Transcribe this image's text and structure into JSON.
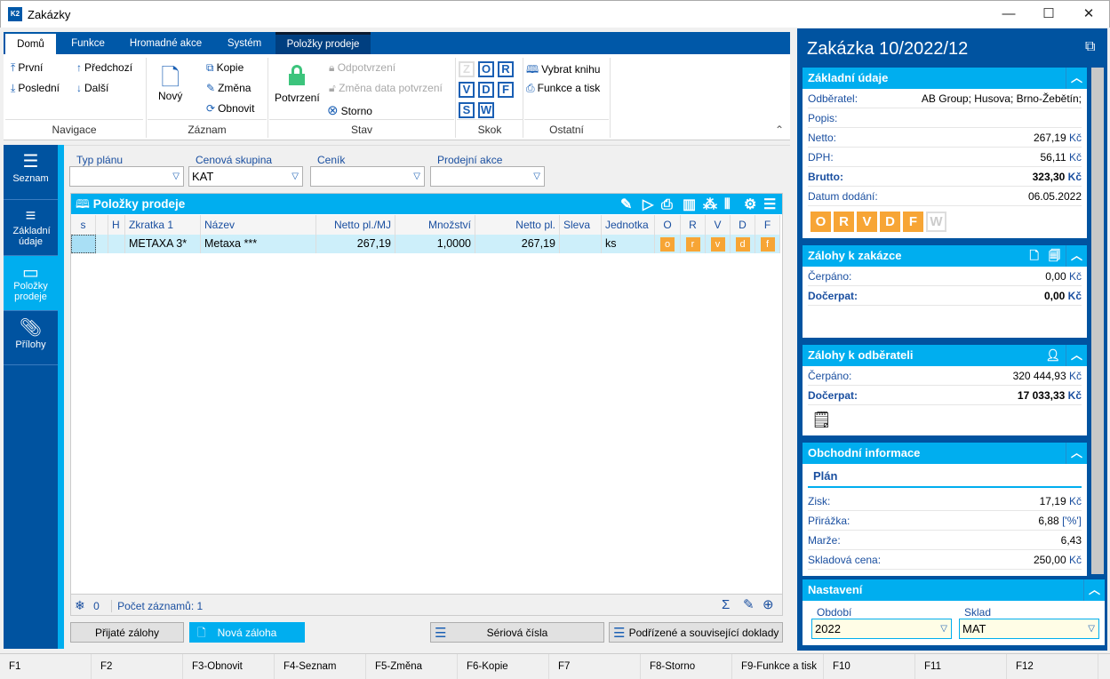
{
  "window": {
    "title": "Zakázky",
    "logo": "K2",
    "controls": [
      "—",
      "☐",
      "✕"
    ]
  },
  "ribbon": {
    "tabs": [
      "Domů",
      "Funkce",
      "Hromadné akce",
      "Systém",
      "Položky prodeje"
    ],
    "navigace": {
      "first": "První",
      "prev": "Předchozí",
      "last": "Poslední",
      "next": "Další",
      "group": "Navigace"
    },
    "zaznam": {
      "new": "Nový",
      "copy": "Kopie",
      "edit": "Změna",
      "refresh": "Obnovit",
      "group": "Záznam"
    },
    "stav": {
      "confirm": "Potvrzení",
      "unconfirm": "Odpotvrzení",
      "change_date": "Změna data potvrzení",
      "cancel": "Storno",
      "group": "Stav"
    },
    "skok": {
      "letters": [
        "Z",
        "O",
        "R",
        "V",
        "D",
        "F",
        "S",
        "W"
      ],
      "group": "Skok"
    },
    "ostatni": {
      "book": "Vybrat knihu",
      "print": "Funkce a tisk",
      "group": "Ostatní"
    }
  },
  "sidebar": {
    "items": [
      {
        "label": "Seznam",
        "icon": "menu-icon"
      },
      {
        "label": "Základní údaje",
        "icon": "list-icon"
      },
      {
        "label": "Položky prodeje",
        "icon": "box-icon"
      },
      {
        "label": "Přílohy",
        "icon": "paperclip-icon"
      }
    ],
    "active": 2
  },
  "filters": [
    {
      "label": "Typ plánu",
      "value": ""
    },
    {
      "label": "Cenová skupina",
      "value": "KAT"
    },
    {
      "label": "Ceník",
      "value": ""
    },
    {
      "label": "Prodejní akce",
      "value": ""
    }
  ],
  "grid": {
    "title": "Položky prodeje",
    "columns": [
      "s",
      "",
      "H",
      "Zkratka 1",
      "Název",
      "Netto pl./MJ",
      "Množství",
      "Netto pl.",
      "Sleva Z",
      "Jednotka",
      "O",
      "R",
      "V",
      "D",
      "F"
    ],
    "rows": [
      [
        "",
        "",
        "",
        "METAXA 3*",
        "Metaxa ***",
        "267,19",
        "1,0000",
        "267,19",
        "",
        "ks",
        "o",
        "r",
        "v",
        "d",
        "f"
      ]
    ],
    "footer": {
      "count_icon_value": "0",
      "records": "Počet záznamů: 1"
    }
  },
  "buttons": {
    "received": "Přijaté zálohy",
    "new_advance": "Nová záloha",
    "serial": "Sériová čísla",
    "related": "Podřízené a související doklady"
  },
  "fkeys": [
    "F1",
    "F2",
    "F3-Obnovit",
    "F4-Seznam",
    "F5-Změna",
    "F6-Kopie",
    "F7",
    "F8-Storno",
    "F9-Funkce a tisk",
    "F10",
    "F11",
    "F12"
  ],
  "panel": {
    "title": "Zakázka 10/2022/12",
    "basic": {
      "title": "Základní údaje",
      "rows": [
        {
          "k": "Odběratel:",
          "v": "AB Group; Husova; Brno-Žebětín;",
          "c": ""
        },
        {
          "k": "Popis:",
          "v": "",
          "c": ""
        },
        {
          "k": "Netto:",
          "v": "267,19",
          "c": "Kč"
        },
        {
          "k": "DPH:",
          "v": "56,11",
          "c": "Kč"
        },
        {
          "k": "Brutto:",
          "v": "323,30",
          "c": "Kč"
        },
        {
          "k": "Datum dodání:",
          "v": "06.05.2022",
          "c": ""
        }
      ],
      "badges": [
        "O",
        "R",
        "V",
        "D",
        "F",
        "W"
      ]
    },
    "adv_order": {
      "title": "Zálohy k zakázce",
      "rows": [
        {
          "k": "Čerpáno:",
          "v": "0,00",
          "c": "Kč"
        },
        {
          "k": "Dočerpat:",
          "v": "0,00",
          "c": "Kč"
        }
      ]
    },
    "adv_customer": {
      "title": "Zálohy k odběrateli",
      "rows": [
        {
          "k": "Čerpáno:",
          "v": "320 444,93",
          "c": "Kč"
        },
        {
          "k": "Dočerpat:",
          "v": "17 033,33",
          "c": "Kč"
        }
      ]
    },
    "business": {
      "title": "Obchodní informace",
      "sub": "Plán",
      "rows": [
        {
          "k": "Zisk:",
          "v": "17,19",
          "c": "Kč"
        },
        {
          "k": "Přirážka:",
          "v": "6,88",
          "c": "['%']"
        },
        {
          "k": "Marže:",
          "v": "6,43",
          "c": ""
        },
        {
          "k": "Skladová cena:",
          "v": "250,00",
          "c": "Kč"
        }
      ]
    },
    "settings": {
      "title": "Nastavení",
      "period_label": "Období",
      "period": "2022",
      "store_label": "Sklad",
      "store": "MAT"
    }
  },
  "colors": {
    "dark_blue": "#0053a0",
    "cyan": "#00aeef",
    "orange": "#f7a535",
    "green": "#3cc47c"
  }
}
